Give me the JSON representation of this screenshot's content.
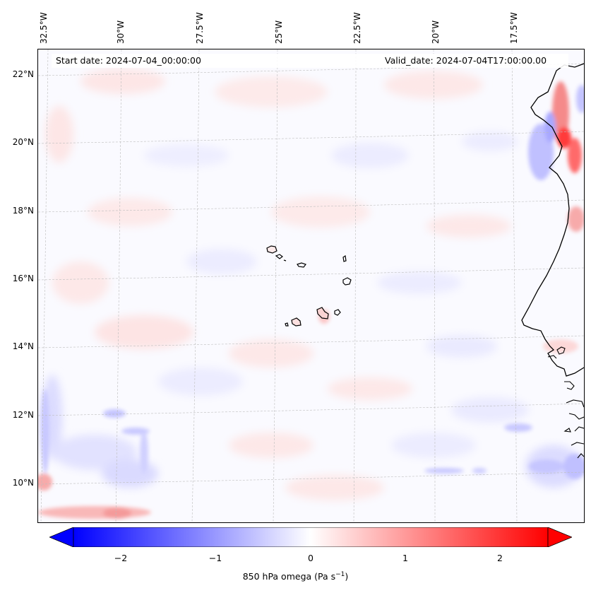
{
  "map": {
    "start_date": "Start date: 2024-07-04_00:00:00",
    "valid_date": "Valid_date: 2024-07-04T17:00:00.00",
    "lon_labels": [
      "32.5°W",
      "30°W",
      "27.5°W",
      "25°W",
      "22.5°W",
      "20°W",
      "17.5°W"
    ],
    "lat_labels": [
      "22°N",
      "20°N",
      "18°N",
      "16°N",
      "14°N",
      "12°N",
      "10°N"
    ],
    "features": [
      "Cape Verde islands",
      "West African coastline"
    ]
  },
  "colorbar": {
    "title": "850 hPa omega (Pa s",
    "title_unit_sup": "−1",
    "title_close": ")",
    "tick_labels": [
      "−2",
      "−1",
      "0",
      "1",
      "2"
    ],
    "tick_values": [
      -2,
      -1,
      0,
      1,
      2
    ],
    "range": [
      -2.5,
      2.5
    ],
    "colormap": "bwr",
    "extend": "both",
    "low_color": "#0000ff",
    "mid_color": "#ffffff",
    "high_color": "#ff0000"
  }
}
